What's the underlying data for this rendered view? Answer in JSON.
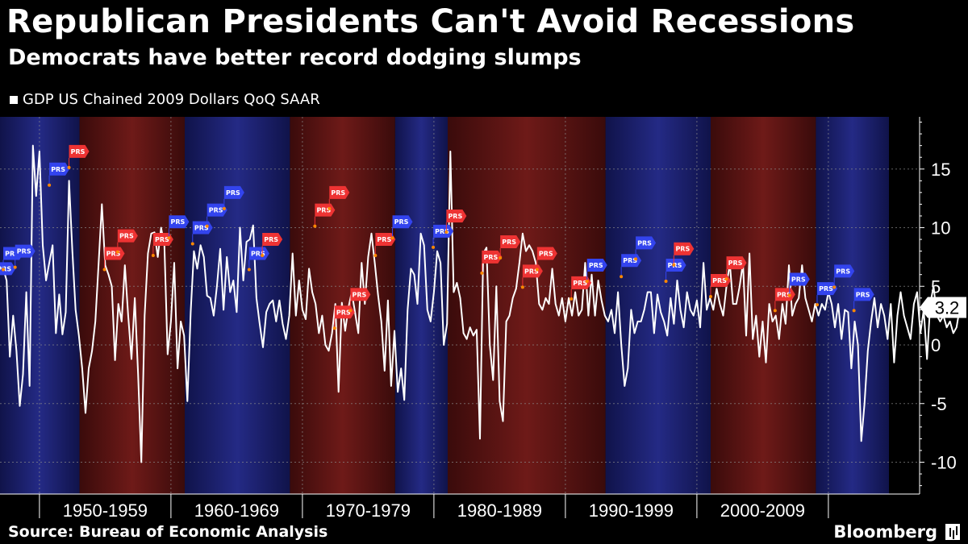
{
  "header": {
    "title": "Republican Presidents Can't Avoid Recessions",
    "subtitle": "Democrats have better record dodging slumps"
  },
  "legend": {
    "label": "GDP US Chained 2009 Dollars QoQ SAAR"
  },
  "footer": {
    "source": "Source: Bureau of Economic Analysis",
    "brand": "Bloomberg"
  },
  "colors": {
    "background": "#000000",
    "democrat_band": "#1b1f6e",
    "republican_band": "#5a1414",
    "line": "#ffffff",
    "flag_blue": "#3344ee",
    "flag_red": "#ee3333",
    "marker": "#ff8800"
  },
  "chart_data": {
    "type": "line",
    "title": "Republican Presidents Can't Avoid Recessions",
    "subtitle": "Democrats have better record dodging slumps",
    "x_range": [
      1947.0,
      2017.25
    ],
    "ylim": [
      -12.5,
      19.5
    ],
    "yticks": [
      15,
      10,
      5,
      0,
      -5,
      -10
    ],
    "ytick_labels": [
      "15",
      "10",
      "5",
      "0",
      "-5",
      "-10"
    ],
    "xtick_labels": [
      {
        "label": "1950-1959",
        "start": 1950,
        "end": 1960
      },
      {
        "label": "1960-1969",
        "start": 1960,
        "end": 1970
      },
      {
        "label": "1970-1979",
        "start": 1970,
        "end": 1980
      },
      {
        "label": "1980-1989",
        "start": 1980,
        "end": 1990
      },
      {
        "label": "1990-1999",
        "start": 1990,
        "end": 2000
      },
      {
        "label": "2000-2009",
        "start": 2000,
        "end": 2010
      }
    ],
    "last_value_label": "3.2",
    "grid": true,
    "legend_position": "top-left",
    "series": [
      {
        "name": "GDP US Chained 2009 Dollars QoQ SAAR",
        "start": 1947.25,
        "step": 0.25,
        "values": [
          6.5,
          5.5,
          -1.0,
          2.5,
          -0.5,
          -5.2,
          -2.5,
          4.5,
          -3.5,
          17.0,
          12.7,
          16.5,
          8.5,
          5.5,
          7.0,
          8.5,
          1.0,
          4.3,
          0.9,
          2.8,
          14.0,
          8.0,
          3.0,
          0.8,
          -2.0,
          -5.8,
          -2.0,
          -0.5,
          2.0,
          7.0,
          12.0,
          6.8,
          6.0,
          5.0,
          -1.3,
          3.5,
          2.0,
          6.8,
          2.5,
          -1.2,
          4.0,
          -2.5,
          -10.0,
          2.5,
          7.8,
          9.5,
          9.6,
          7.5,
          10.0,
          8.5,
          -0.8,
          2.0,
          7.0,
          -2.0,
          2.0,
          0.8,
          -4.8,
          2.8,
          8.0,
          6.5,
          8.5,
          7.5,
          4.2,
          4.0,
          2.5,
          5.0,
          8.2,
          3.0,
          7.5,
          4.5,
          5.5,
          2.8,
          10.0,
          5.5,
          8.8,
          9.0,
          10.2,
          4.0,
          1.8,
          -0.2,
          2.8,
          3.5,
          3.8,
          2.0,
          3.8,
          1.8,
          0.5,
          2.5,
          7.8,
          2.5,
          5.5,
          3.0,
          2.2,
          6.5,
          4.5,
          3.5,
          1.0,
          2.5,
          0.0,
          -0.5,
          1.0,
          3.5,
          -4.0,
          3.6,
          1.2,
          3.2,
          4.5,
          2.8,
          1.0,
          7.0,
          3.5,
          7.5,
          9.5,
          7.0,
          4.3,
          2.0,
          -2.2,
          3.8,
          -3.5,
          1.2,
          -4.0,
          -2.0,
          -4.7,
          3.0,
          6.5,
          6.0,
          3.5,
          9.5,
          8.5,
          3.0,
          2.0,
          4.5,
          8.0,
          7.0,
          0.0,
          1.8,
          16.5,
          4.5,
          5.3,
          4.0,
          1.0,
          0.5,
          1.5,
          0.8,
          1.3,
          -8.0,
          7.8,
          8.3,
          0.0,
          -3.0,
          5.0,
          -4.8,
          -6.5,
          2.0,
          2.5,
          4.0,
          4.8,
          7.0,
          9.5,
          8.0,
          8.5,
          8.0,
          7.0,
          3.5,
          3.0,
          4.0,
          3.5,
          6.5,
          3.5,
          2.5,
          4.0,
          2.0,
          4.0,
          2.5,
          4.5,
          2.5,
          3.0,
          7.0,
          2.5,
          6.0,
          2.5,
          5.5,
          3.8,
          2.5,
          2.0,
          3.0,
          1.0,
          4.5,
          0.0,
          -3.5,
          -2.0,
          3.0,
          1.0,
          2.0,
          2.0,
          3.0,
          4.5,
          4.5,
          1.0,
          4.3,
          2.8,
          2.0,
          0.8,
          4.0,
          1.8,
          5.5,
          3.0,
          1.5,
          4.5,
          3.0,
          2.5,
          3.8,
          1.5,
          7.0,
          3.0,
          4.0,
          3.0,
          4.8,
          3.5,
          2.5,
          5.0,
          7.0,
          3.5,
          3.5,
          5.0,
          7.0,
          0.8,
          7.8,
          0.5,
          2.5,
          -1.0,
          2.0,
          -1.5,
          3.5,
          2.0,
          2.5,
          0.5,
          3.5,
          1.8,
          6.8,
          2.5,
          3.5,
          4.0,
          6.8,
          4.0,
          3.0,
          2.0,
          3.5,
          2.5,
          3.5,
          3.0,
          4.5,
          3.5,
          1.5,
          3.5,
          0.5,
          3.0,
          2.8,
          -2.0,
          2.0,
          0.0,
          -8.2,
          -5.0,
          -0.5,
          2.0,
          4.0,
          1.5,
          3.5,
          2.5,
          0.5,
          3.5,
          -1.5,
          2.5,
          4.5,
          2.5,
          1.5,
          0.5,
          3.5,
          4.5,
          1.0,
          3.0,
          -1.2,
          3.5,
          5.0,
          2.5,
          2.0,
          2.5,
          1.5,
          2.0,
          1.0,
          1.5,
          3.2
        ]
      }
    ],
    "party_bands": [
      {
        "party": "D",
        "start": 1947.0,
        "end": 1953.05
      },
      {
        "party": "R",
        "start": 1953.05,
        "end": 1961.05
      },
      {
        "party": "D",
        "start": 1961.05,
        "end": 1969.05
      },
      {
        "party": "R",
        "start": 1969.05,
        "end": 1977.05
      },
      {
        "party": "D",
        "start": 1977.05,
        "end": 1981.05
      },
      {
        "party": "R",
        "start": 1981.05,
        "end": 1993.05
      },
      {
        "party": "D",
        "start": 1993.05,
        "end": 2001.05
      },
      {
        "party": "R",
        "start": 2001.05,
        "end": 2009.05
      },
      {
        "party": "D",
        "start": 2009.05,
        "end": 2017.05
      }
    ],
    "flag_label": "PRS",
    "flags": [
      {
        "x": 1947.2,
        "y": 6.5,
        "party": "D"
      },
      {
        "x": 1947.8,
        "y": 7.8,
        "party": "D"
      },
      {
        "x": 1948.7,
        "y": 8.0,
        "party": "D"
      },
      {
        "x": 1951.3,
        "y": 15.0,
        "party": "D"
      },
      {
        "x": 1952.8,
        "y": 16.5,
        "party": "R"
      },
      {
        "x": 1955.5,
        "y": 7.8,
        "party": "R"
      },
      {
        "x": 1956.5,
        "y": 9.3,
        "party": "R"
      },
      {
        "x": 1959.2,
        "y": 9.0,
        "party": "R"
      },
      {
        "x": 1960.4,
        "y": 10.5,
        "party": "D"
      },
      {
        "x": 1962.2,
        "y": 10.0,
        "party": "D"
      },
      {
        "x": 1963.3,
        "y": 11.5,
        "party": "D"
      },
      {
        "x": 1964.6,
        "y": 13.0,
        "party": "D"
      },
      {
        "x": 1966.5,
        "y": 7.8,
        "party": "D"
      },
      {
        "x": 1967.5,
        "y": 9.0,
        "party": "R"
      },
      {
        "x": 1971.5,
        "y": 11.5,
        "party": "R"
      },
      {
        "x": 1972.6,
        "y": 13.0,
        "party": "R"
      },
      {
        "x": 1973.0,
        "y": 2.8,
        "party": "R"
      },
      {
        "x": 1974.2,
        "y": 4.3,
        "party": "R"
      },
      {
        "x": 1976.1,
        "y": 9.0,
        "party": "R"
      },
      {
        "x": 1977.4,
        "y": 10.5,
        "party": "D"
      },
      {
        "x": 1980.5,
        "y": 9.7,
        "party": "D"
      },
      {
        "x": 1981.5,
        "y": 11.0,
        "party": "R"
      },
      {
        "x": 1984.2,
        "y": 7.5,
        "party": "R"
      },
      {
        "x": 1985.6,
        "y": 8.8,
        "party": "R"
      },
      {
        "x": 1987.3,
        "y": 6.3,
        "party": "R"
      },
      {
        "x": 1988.4,
        "y": 7.8,
        "party": "R"
      },
      {
        "x": 1991.0,
        "y": 5.3,
        "party": "R"
      },
      {
        "x": 1992.2,
        "y": 6.8,
        "party": "D"
      },
      {
        "x": 1994.8,
        "y": 7.2,
        "party": "D"
      },
      {
        "x": 1995.9,
        "y": 8.7,
        "party": "D"
      },
      {
        "x": 1998.2,
        "y": 6.8,
        "party": "D"
      },
      {
        "x": 1998.8,
        "y": 8.2,
        "party": "R"
      },
      {
        "x": 2001.6,
        "y": 5.5,
        "party": "R"
      },
      {
        "x": 2002.8,
        "y": 7.0,
        "party": "R"
      },
      {
        "x": 2006.5,
        "y": 4.3,
        "party": "R"
      },
      {
        "x": 2007.6,
        "y": 5.6,
        "party": "D"
      },
      {
        "x": 2009.7,
        "y": 4.8,
        "party": "D"
      },
      {
        "x": 2011.0,
        "y": 6.3,
        "party": "D"
      },
      {
        "x": 2012.5,
        "y": 4.3,
        "party": "D"
      }
    ]
  }
}
